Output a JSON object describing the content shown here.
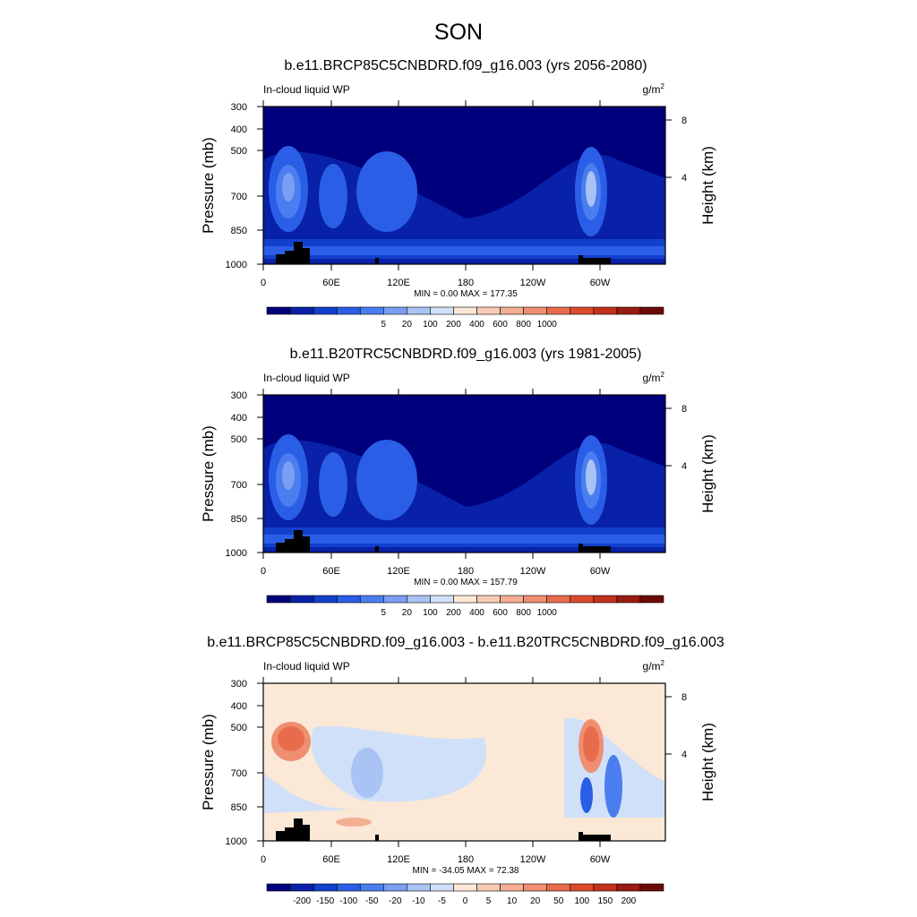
{
  "figure": {
    "title": "SON"
  },
  "chart_data": [
    {
      "type": "heatmap",
      "title": "b.e11.BRCP85C5CNBDRD.f09_g16.003 (yrs 2056-2080)",
      "variable": "In-cloud liquid WP",
      "units": "g/m",
      "units_sup": "2",
      "ylabel": "Pressure (mb)",
      "y2label": "Height (km)",
      "x_ticks": [
        "0",
        "60E",
        "120E",
        "180",
        "120W",
        "60W"
      ],
      "y_ticks": [
        "300",
        "400",
        "500",
        "700",
        "850",
        "1000"
      ],
      "y2_ticks": [
        "8",
        "4"
      ],
      "stats": "MIN =   0.00  MAX = 177.35",
      "colorbar_levels": [
        "5",
        "20",
        "100",
        "200",
        "400",
        "600",
        "800",
        "1000"
      ],
      "colorbar_colors": [
        "#00007c",
        "#0821a8",
        "#1240cc",
        "#2a5ee6",
        "#4a7ef0",
        "#7a9ff2",
        "#a9c3f4",
        "#d0e0f8",
        "#fce8d6",
        "#f8cbb4",
        "#f4ae93",
        "#ef8e70",
        "#e86c4c",
        "#dc4a2c",
        "#c3301c",
        "#9a1b10",
        "#6e0a06"
      ],
      "max": 177.35,
      "min": 0.0
    },
    {
      "type": "heatmap",
      "title": "b.e11.B20TRC5CNBDRD.f09_g16.003 (yrs 1981-2005)",
      "variable": "In-cloud liquid WP",
      "units": "g/m",
      "units_sup": "2",
      "ylabel": "Pressure (mb)",
      "y2label": "Height (km)",
      "x_ticks": [
        "0",
        "60E",
        "120E",
        "180",
        "120W",
        "60W"
      ],
      "y_ticks": [
        "300",
        "400",
        "500",
        "700",
        "850",
        "1000"
      ],
      "y2_ticks": [
        "8",
        "4"
      ],
      "stats": "MIN =   0.00  MAX = 157.79",
      "colorbar_levels": [
        "5",
        "20",
        "100",
        "200",
        "400",
        "600",
        "800",
        "1000"
      ],
      "colorbar_colors": [
        "#00007c",
        "#0821a8",
        "#1240cc",
        "#2a5ee6",
        "#4a7ef0",
        "#7a9ff2",
        "#a9c3f4",
        "#d0e0f8",
        "#fce8d6",
        "#f8cbb4",
        "#f4ae93",
        "#ef8e70",
        "#e86c4c",
        "#dc4a2c",
        "#c3301c",
        "#9a1b10",
        "#6e0a06"
      ],
      "max": 157.79,
      "min": 0.0
    },
    {
      "type": "heatmap",
      "title": "b.e11.BRCP85C5CNBDRD.f09_g16.003 - b.e11.B20TRC5CNBDRD.f09_g16.003",
      "variable": "In-cloud liquid WP",
      "units": "g/m",
      "units_sup": "2",
      "ylabel": "Pressure (mb)",
      "y2label": "Height (km)",
      "x_ticks": [
        "0",
        "60E",
        "120E",
        "180",
        "120W",
        "60W"
      ],
      "y_ticks": [
        "300",
        "400",
        "500",
        "700",
        "850",
        "1000"
      ],
      "y2_ticks": [
        "8",
        "4"
      ],
      "stats": "MIN = -34.05  MAX =  72.38",
      "colorbar_levels": [
        "-200",
        "-150",
        "-100",
        "-50",
        "-20",
        "-10",
        "-5",
        "0",
        "5",
        "10",
        "20",
        "50",
        "100",
        "150",
        "200"
      ],
      "colorbar_colors": [
        "#00007c",
        "#0821a8",
        "#1240cc",
        "#2a5ee6",
        "#4a7ef0",
        "#7a9ff2",
        "#a9c3f4",
        "#d0e0f8",
        "#fce8d6",
        "#f8cbb4",
        "#f4ae93",
        "#ef8e70",
        "#e86c4c",
        "#dc4a2c",
        "#c3301c",
        "#9a1b10",
        "#6e0a06"
      ],
      "max": 72.38,
      "min": -34.05
    }
  ]
}
